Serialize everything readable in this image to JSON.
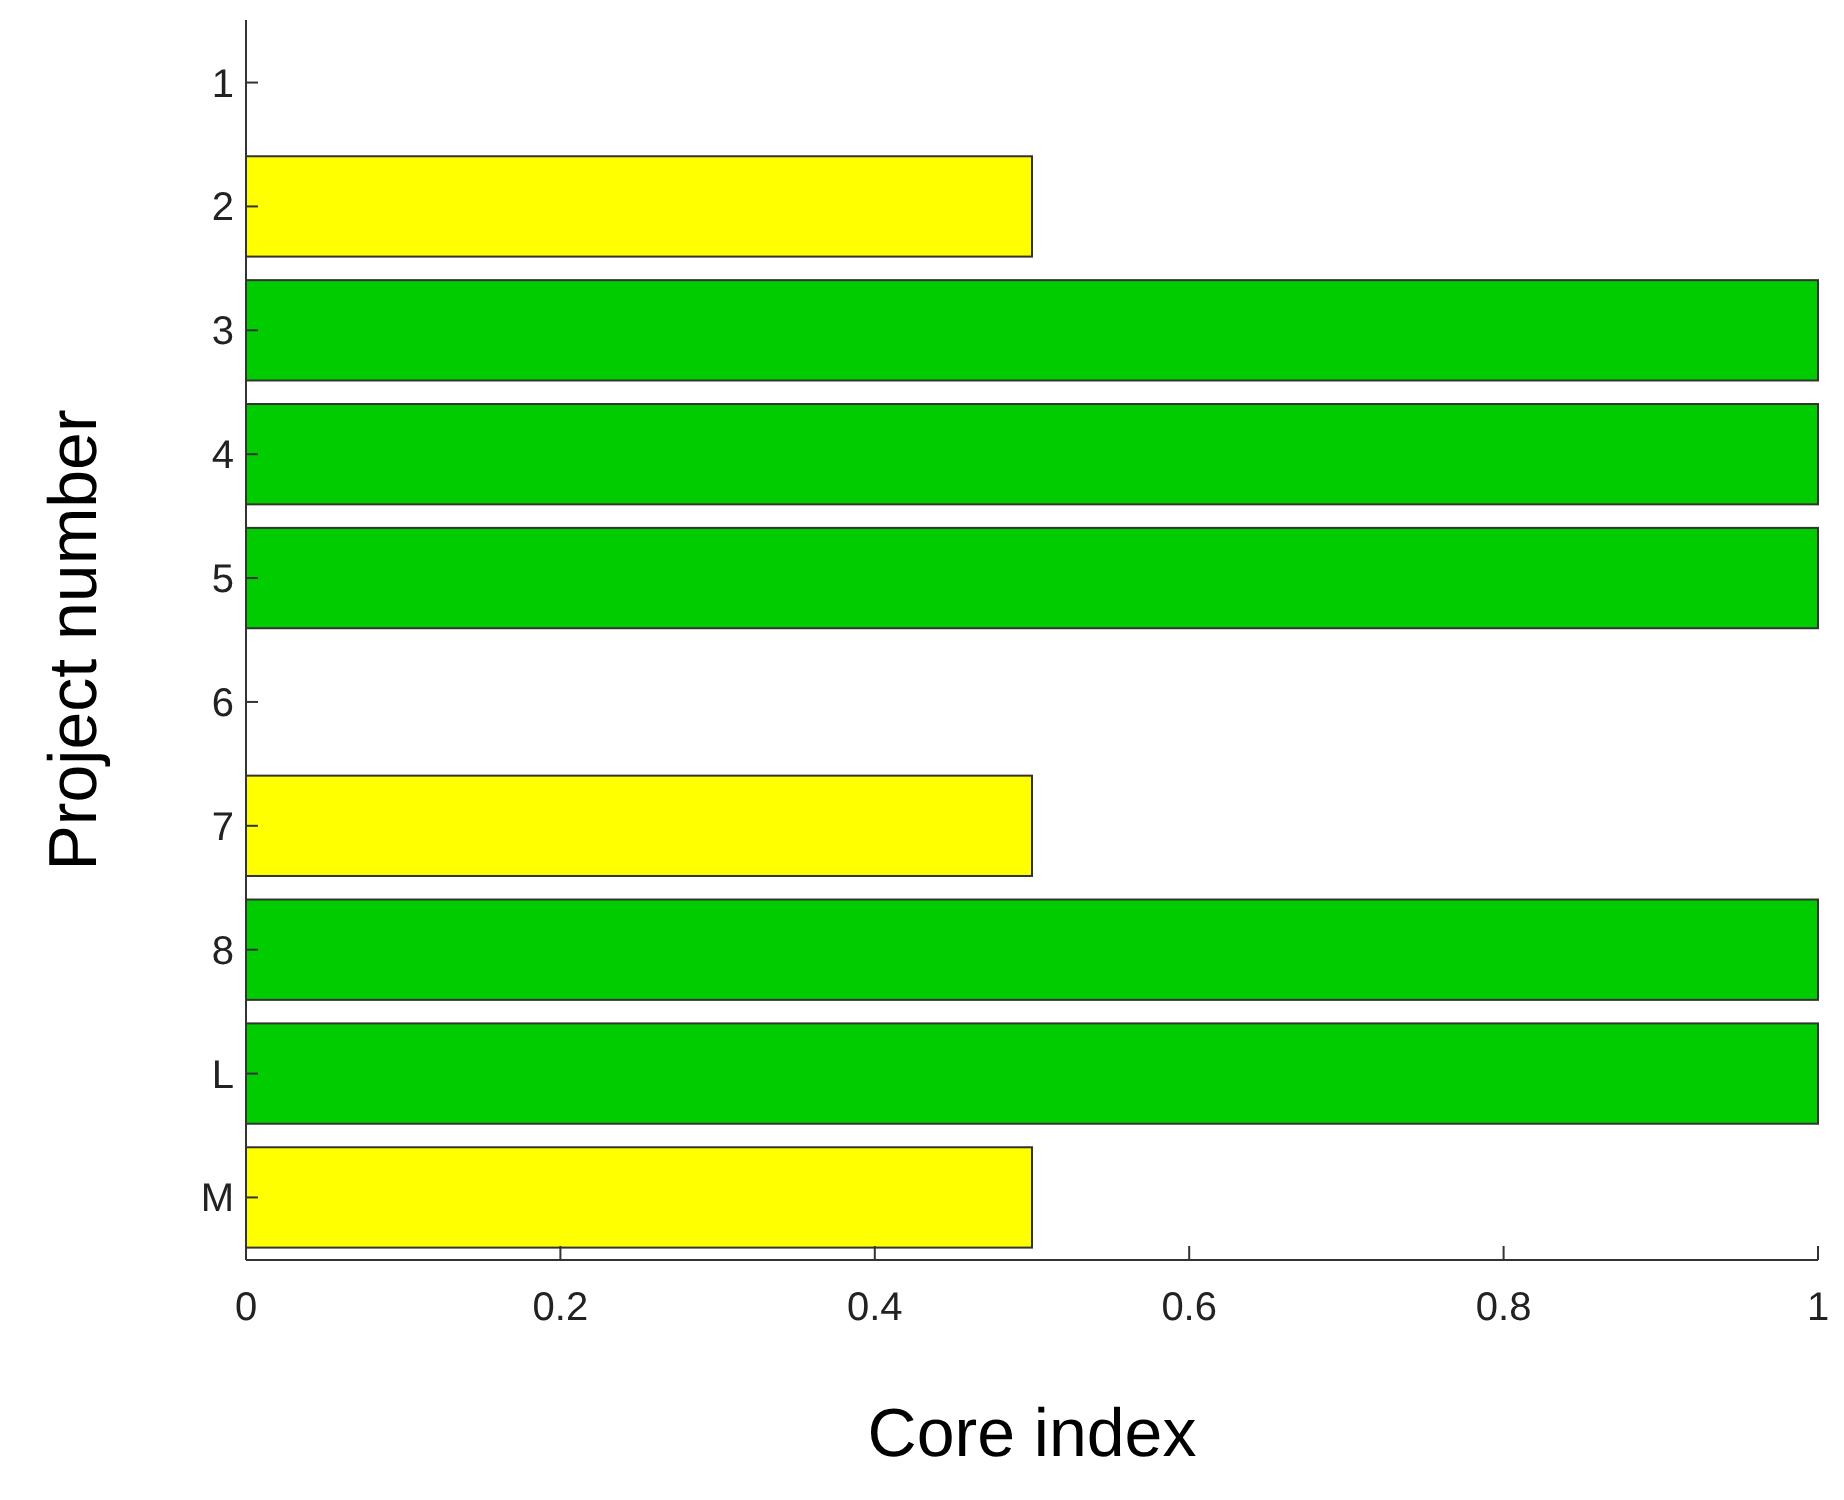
{
  "chart_data": {
    "type": "bar",
    "orientation": "horizontal",
    "xlabel": "Core index",
    "ylabel": "Project number",
    "categories": [
      "1",
      "2",
      "3",
      "4",
      "5",
      "6",
      "7",
      "8",
      "L",
      "M"
    ],
    "values": [
      0,
      0.5,
      1,
      1,
      1,
      0,
      0.5,
      1,
      1,
      0.5
    ],
    "colors": [
      "#00cc00",
      "#ffff00",
      "#00cc00",
      "#00cc00",
      "#00cc00",
      "#00cc00",
      "#ffff00",
      "#00cc00",
      "#00cc00",
      "#ffff00"
    ],
    "xlim": [
      0,
      1
    ],
    "xticks": [
      0,
      0.2,
      0.4,
      0.6,
      0.8,
      1
    ],
    "grid": false
  }
}
